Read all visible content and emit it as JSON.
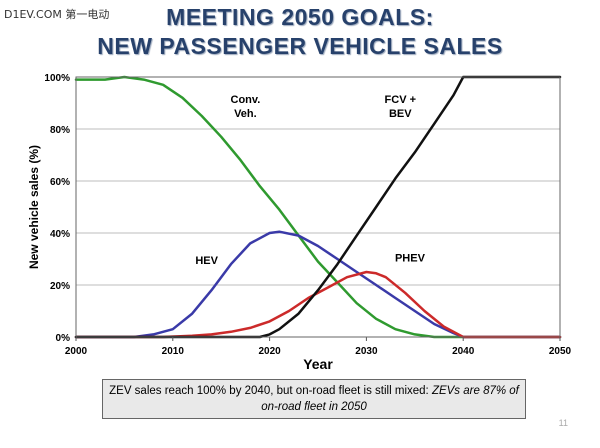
{
  "watermark": "D1EV.COM 第一电动",
  "title_line1": "MEETING 2050 GOALS:",
  "title_line2": "NEW PASSENGER VEHICLE SALES",
  "caption": {
    "normal": "ZEV sales reach 100% by 2040, but on-road fleet is still mixed: ",
    "italic": "ZEVs are 87% of on-road fleet in 2050"
  },
  "page_number": "11",
  "colors": {
    "conv": "#2f9a2f",
    "hev": "#3a3aa8",
    "phev": "#cc2a2a",
    "fcv_bev": "#111111",
    "title": "#27416b"
  },
  "chart_data": {
    "type": "line",
    "xlabel": "Year",
    "ylabel": "New vehicle sales (%)",
    "xlim": [
      2000,
      2050
    ],
    "ylim": [
      0,
      100
    ],
    "xticks": [
      "2000",
      "2010",
      "2020",
      "2030",
      "2040",
      "2050"
    ],
    "yticks": [
      "0%",
      "20%",
      "40%",
      "60%",
      "80%",
      "100%"
    ],
    "grid": true,
    "series": [
      {
        "name": "Conv. Veh.",
        "color": "#2f9a2f",
        "x": [
          2000,
          2003,
          2005,
          2007,
          2009,
          2011,
          2013,
          2015,
          2017,
          2019,
          2021,
          2023,
          2025,
          2027,
          2029,
          2031,
          2033,
          2035,
          2037,
          2040,
          2045,
          2050
        ],
        "y": [
          99,
          99,
          100,
          99,
          97,
          92,
          85,
          77,
          68,
          58,
          49,
          39,
          29,
          21,
          13,
          7,
          3,
          1,
          0,
          0,
          0,
          0
        ]
      },
      {
        "name": "HEV",
        "color": "#3a3aa8",
        "x": [
          2000,
          2006,
          2008,
          2010,
          2012,
          2014,
          2016,
          2018,
          2020,
          2021,
          2023,
          2025,
          2027,
          2029,
          2031,
          2033,
          2035,
          2037,
          2039,
          2040,
          2045,
          2050
        ],
        "y": [
          0,
          0,
          1,
          3,
          9,
          18,
          28,
          36,
          40,
          40.5,
          39,
          35,
          30,
          25,
          20,
          15,
          10,
          5,
          1.5,
          0,
          0,
          0
        ]
      },
      {
        "name": "PHEV",
        "color": "#cc2a2a",
        "x": [
          2000,
          2009,
          2012,
          2014,
          2016,
          2018,
          2020,
          2022,
          2024,
          2026,
          2028,
          2030,
          2031,
          2032,
          2034,
          2036,
          2038,
          2040,
          2045,
          2050
        ],
        "y": [
          0,
          0,
          0.5,
          1,
          2,
          3.5,
          6,
          10,
          15,
          19,
          23,
          25,
          24.5,
          23,
          17,
          10,
          4,
          0,
          0,
          0
        ]
      },
      {
        "name": "FCV + BEV",
        "color": "#111111",
        "x": [
          2000,
          2019,
          2020,
          2021,
          2023,
          2025,
          2027,
          2029,
          2031,
          2033,
          2035,
          2037,
          2039,
          2040,
          2045,
          2050
        ],
        "y": [
          0,
          0,
          1,
          3,
          9,
          18,
          28,
          39,
          50,
          61,
          71,
          82,
          93,
          100,
          100,
          100
        ]
      }
    ],
    "annotations": [
      {
        "lines": [
          "Conv.",
          "Veh."
        ],
        "x": 2017.5,
        "y": 90
      },
      {
        "lines": [
          "FCV +",
          "BEV"
        ],
        "x": 2033.5,
        "y": 90
      },
      {
        "lines": [
          "HEV"
        ],
        "x": 2013.5,
        "y": 28
      },
      {
        "lines": [
          "PHEV"
        ],
        "x": 2034.5,
        "y": 29
      }
    ]
  }
}
